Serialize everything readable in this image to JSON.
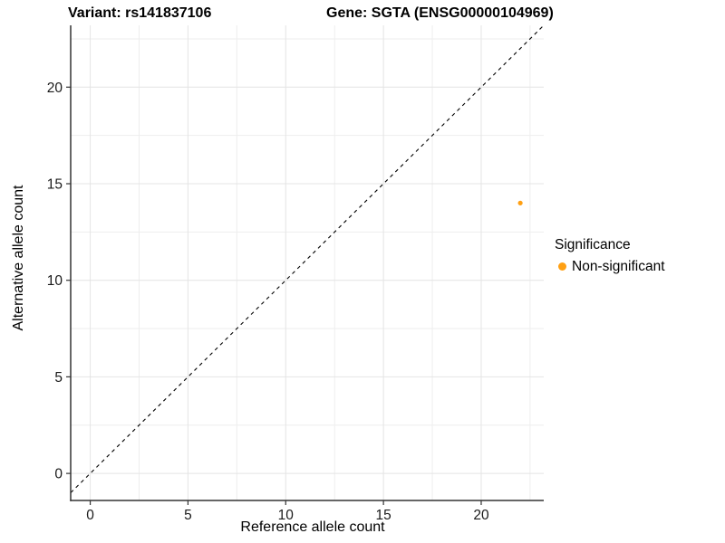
{
  "figure": {
    "title_left": "Variant: rs141837106",
    "title_right": "Gene: SGTA (ENSG00000104969)"
  },
  "chart_data": {
    "type": "scatter",
    "title": "Variant: rs141837106 / Gene: SGTA (ENSG00000104969)",
    "xlabel": "Reference allele count",
    "ylabel": "Alternative allele count",
    "xlim": [
      -1,
      23.2
    ],
    "ylim": [
      -1.4,
      23.2
    ],
    "xticks": [
      0,
      5,
      10,
      15,
      20
    ],
    "yticks": [
      0,
      5,
      10,
      15,
      20
    ],
    "xminor": [
      2.5,
      7.5,
      12.5,
      17.5,
      22.5
    ],
    "yminor": [
      2.5,
      7.5,
      12.5,
      17.5,
      22.5
    ],
    "grid": true,
    "series": [
      {
        "name": "Non-significant",
        "color": "#FFA013",
        "points": [
          {
            "x": 22,
            "y": 14
          }
        ]
      }
    ],
    "reference_line": {
      "kind": "identity y=x",
      "style": "dashed",
      "color": "#000000"
    },
    "legend": {
      "title": "Significance",
      "position": "right",
      "items": [
        {
          "label": "Non-significant",
          "color": "#FFA013"
        }
      ]
    }
  },
  "colors": {
    "background": "#FFFFFF",
    "grid_major": "#E4E4E4",
    "grid_minor": "#EEEEEE",
    "axis": "#333333",
    "tick_text": "#1A1A1A",
    "point": "#FFA013"
  }
}
